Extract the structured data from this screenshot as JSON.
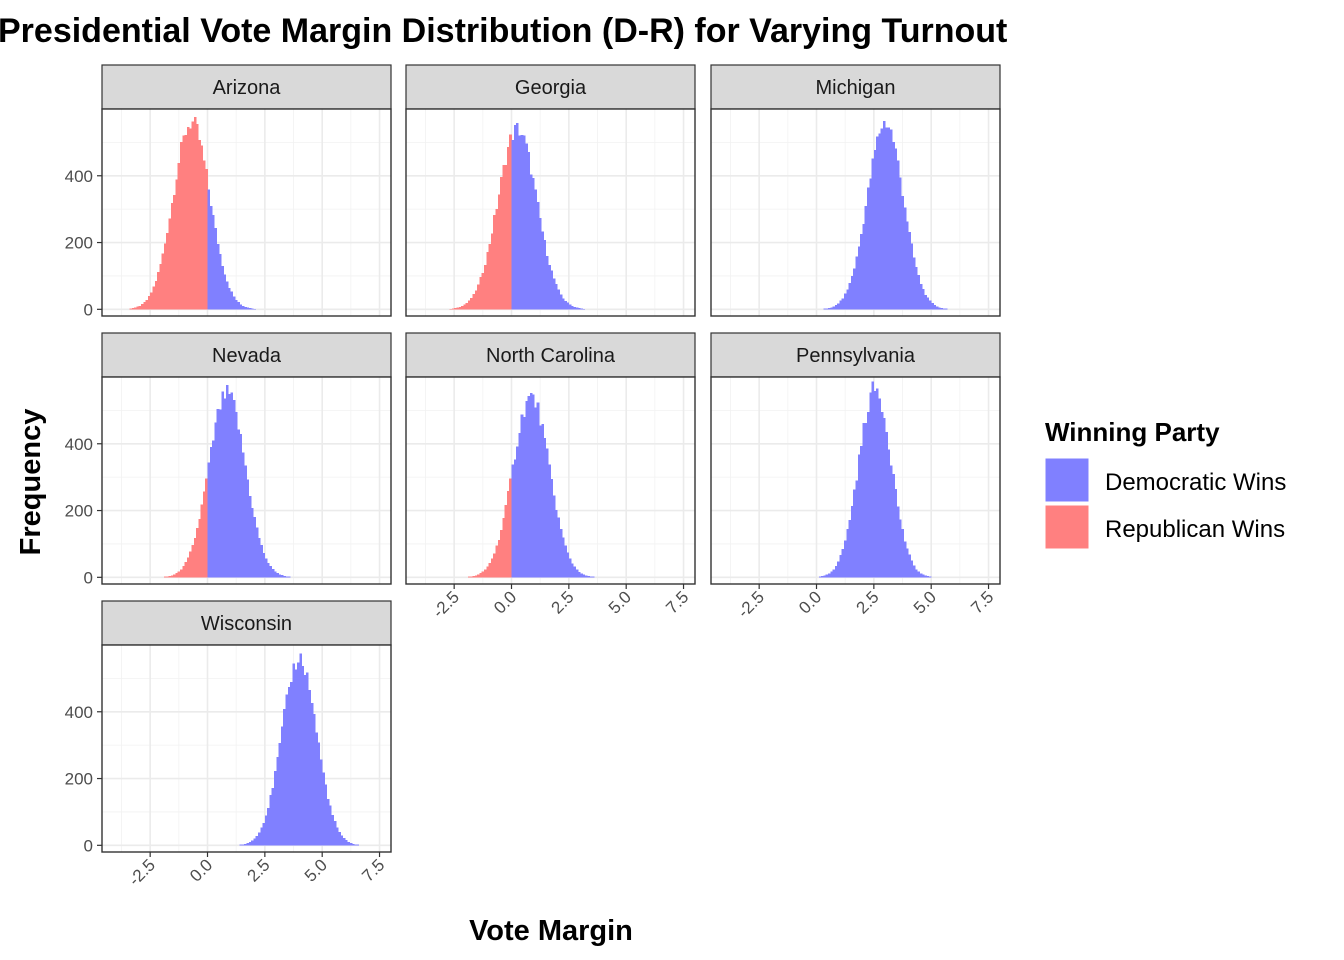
{
  "chart_data": {
    "type": "bar",
    "title": "Presidential Vote Margin Distribution (D-R) for Varying Turnout",
    "xlabel": "Vote Margin",
    "ylabel": "Frequency",
    "xlim": [
      -4.6,
      8.0
    ],
    "ylim": [
      -20,
      600
    ],
    "x_ticks": [
      -2.5,
      0.0,
      2.5,
      5.0,
      7.5
    ],
    "x_tick_labels": [
      "-2.5",
      "0.0",
      "2.5",
      "5.0",
      "7.5"
    ],
    "y_ticks": [
      0,
      200,
      400
    ],
    "y_tick_labels": [
      "0",
      "200",
      "400"
    ],
    "grid": true,
    "bin_width": 0.1,
    "legend": {
      "title": "Winning Party",
      "position": "right",
      "entries": [
        {
          "label": "Democratic Wins",
          "color": "#8080ff"
        },
        {
          "label": "Republican Wins",
          "color": "#ff8080"
        }
      ]
    },
    "panels": [
      {
        "name": "Arizona",
        "mean": -0.7,
        "sd": 0.8,
        "peak": 560
      },
      {
        "name": "Georgia",
        "mean": 0.25,
        "sd": 0.85,
        "peak": 540
      },
      {
        "name": "Michigan",
        "mean": 3.0,
        "sd": 0.78,
        "peak": 560
      },
      {
        "name": "Nevada",
        "mean": 0.85,
        "sd": 0.8,
        "peak": 550
      },
      {
        "name": "North Carolina",
        "mean": 0.85,
        "sd": 0.8,
        "peak": 540
      },
      {
        "name": "Pennsylvania",
        "mean": 2.55,
        "sd": 0.72,
        "peak": 565
      },
      {
        "name": "Wisconsin",
        "mean": 4.0,
        "sd": 0.76,
        "peak": 560
      }
    ]
  }
}
